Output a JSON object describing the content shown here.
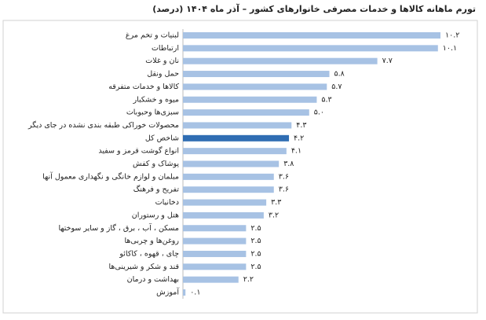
{
  "chart_data": {
    "type": "hbar",
    "title": "تورم ماهانه کالاها و خدمات مصرفی خانوارهای کشور – آذر ماه ۱۴۰۴ (درصد)",
    "categories": [
      "لبنیات و تخم مرغ",
      "ارتباطات",
      "نان و غلات",
      "حمل ونقل",
      "کالاها و خدمات متفرقه",
      "میوه و خشکبار",
      "سبزی‌ها وحبوبات",
      "محصولات خوراکی طبقه بندی نشده در جای دیگر",
      "شاخص کل",
      "انواع گوشت قرمز و سفید",
      "پوشاک و کفش",
      "مبلمان و لوازم خانگی و نگهداری معمول آنها",
      "تفریح و فرهنگ",
      "دخانیات",
      "هتل و رستوران",
      "مسکن ، آب ، برق ، گاز و سایر سوختها",
      "روغن‌ها و چربی‌ها",
      "چای ، قهوه ، کاکائو",
      "قند و شکر و شیرینی‌ها",
      "بهداشت و درمان",
      "آموزش"
    ],
    "values": [
      10.2,
      10.1,
      7.7,
      5.8,
      5.7,
      5.3,
      5.0,
      4.3,
      4.2,
      4.1,
      3.8,
      3.6,
      3.6,
      3.3,
      3.2,
      2.5,
      2.5,
      2.5,
      2.5,
      2.2,
      0.1
    ],
    "value_labels": [
      "۱۰.۲",
      "۱۰.۱",
      "۷.۷",
      "۵.۸",
      "۵.۷",
      "۵.۳",
      "۵.۰",
      "۴.۳",
      "۴.۲",
      "۴.۱",
      "۳.۸",
      "۳.۶",
      "۳.۶",
      "۳.۳",
      "۳.۲",
      "۲.۵",
      "۲.۵",
      "۲.۵",
      "۲.۵",
      "۲.۲",
      "۰.۱"
    ],
    "colors": [
      "#a7c2e4",
      "#a7c2e4",
      "#a7c2e4",
      "#a7c2e4",
      "#a7c2e4",
      "#a7c2e4",
      "#a7c2e4",
      "#a7c2e4",
      "#2f6db3",
      "#a7c2e4",
      "#a7c2e4",
      "#a7c2e4",
      "#a7c2e4",
      "#a7c2e4",
      "#a7c2e4",
      "#a7c2e4",
      "#a7c2e4",
      "#a7c2e4",
      "#a7c2e4",
      "#a7c2e4",
      "#a7c2e4"
    ]
  }
}
